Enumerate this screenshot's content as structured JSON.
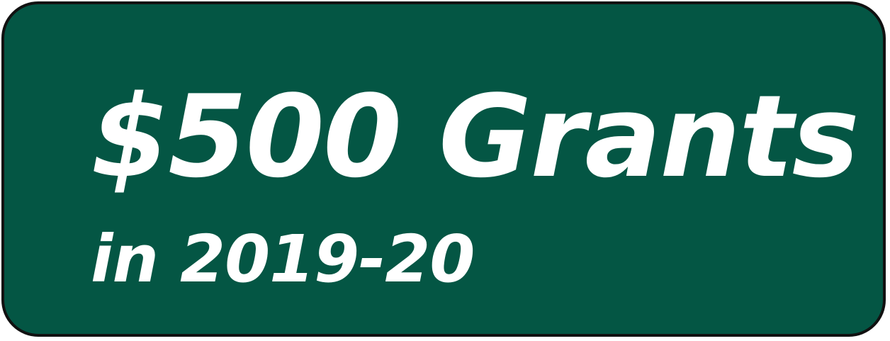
{
  "badge": {
    "headline": "$500 Grants",
    "subline": "in 2019-20"
  },
  "colors": {
    "background": "#045644",
    "border": "#111111",
    "text": "#ffffff"
  }
}
